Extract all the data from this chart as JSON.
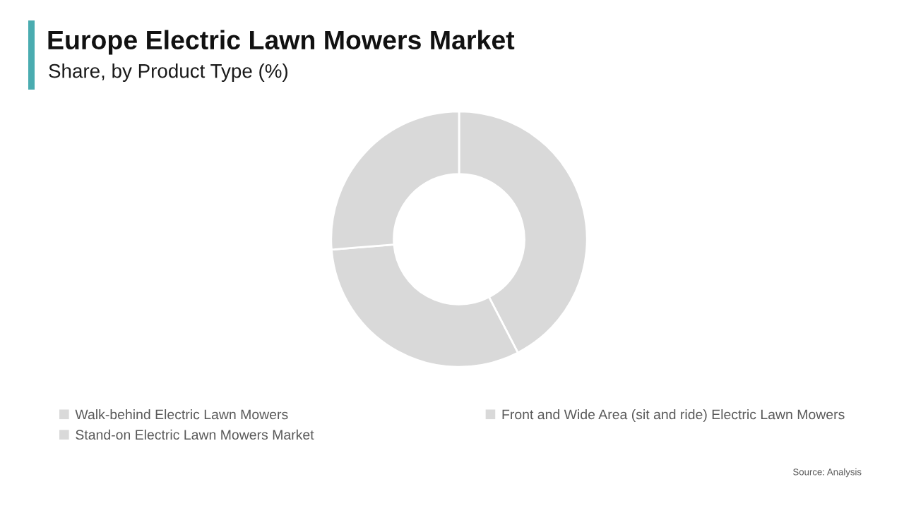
{
  "chart_data": {
    "type": "donut",
    "title": "Europe Electric Lawn Mowers Market",
    "subtitle": "Share, by Product Type (%)",
    "categories": [
      "Walk-behind Electric Lawn Mowers",
      "Front and Wide Area (sit and ride) Electric Lawn Mowers",
      "Stand-on Electric Lawn Mowers Market"
    ],
    "values": [
      42.4,
      31.3,
      26.3
    ],
    "colors": [
      "#d9d9d9",
      "#d9d9d9",
      "#d9d9d9"
    ],
    "legend": "bottom",
    "annotations": [
      "Source: Analysis"
    ]
  }
}
